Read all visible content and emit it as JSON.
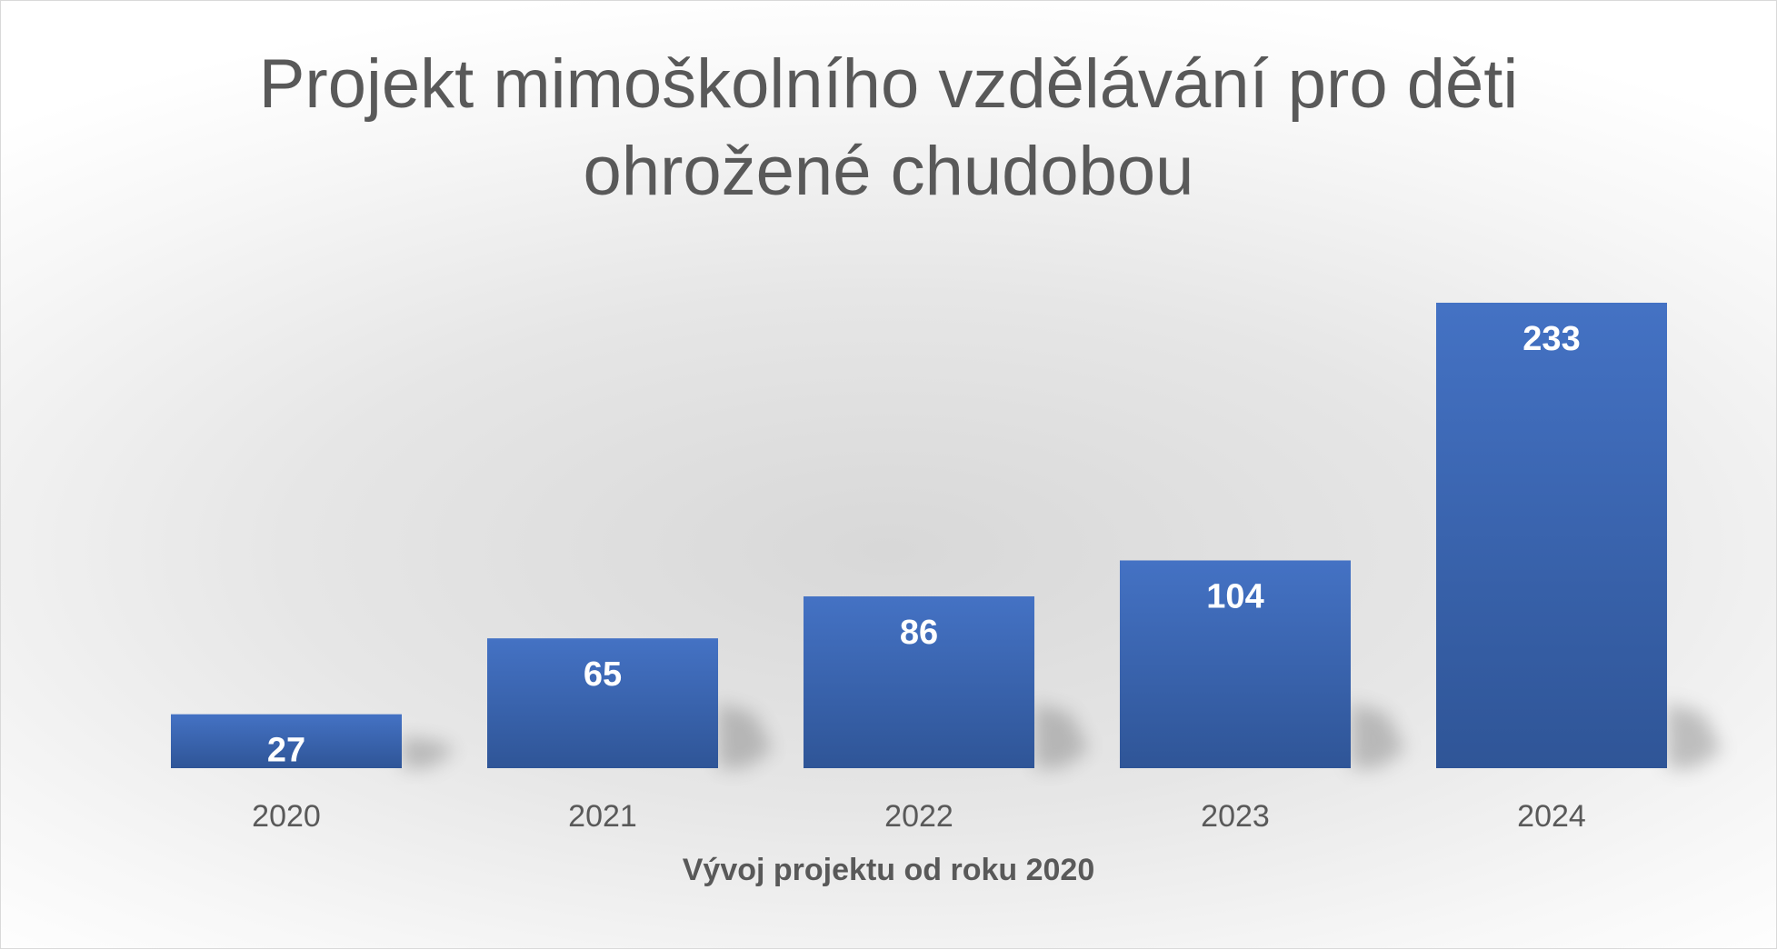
{
  "chart_data": {
    "type": "bar",
    "title_lines": [
      "Projekt mimoškolního vzdělávání pro děti",
      "ohrožené chudobou"
    ],
    "categories": [
      "2020",
      "2021",
      "2022",
      "2023",
      "2024"
    ],
    "values": [
      27,
      65,
      86,
      104,
      233
    ],
    "xlabel": "Vývoj projektu od roku 2020",
    "ylabel": "",
    "ylim": [
      0,
      233
    ],
    "grid": false,
    "legend": "none",
    "data_labels": "inside-end",
    "colors": {
      "bar_top": "#4472c4",
      "bar_bottom": "#2f5597",
      "label": "#ffffff",
      "axis_text": "#595959"
    }
  }
}
